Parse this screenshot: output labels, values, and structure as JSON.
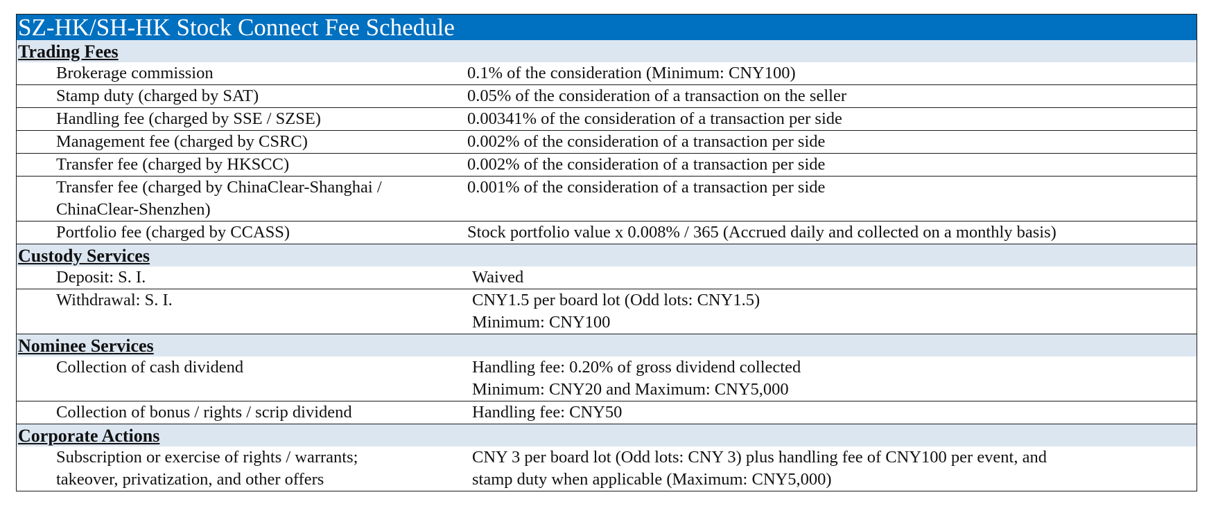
{
  "title": "SZ-HK/SH-HK Stock Connect Fee Schedule",
  "sections": [
    {
      "heading": "Trading Fees",
      "rows": [
        {
          "label": [
            "Brokerage commission"
          ],
          "value": [
            "0.1% of the consideration (Minimum: CNY100)"
          ]
        },
        {
          "label": [
            "Stamp duty (charged by SAT)"
          ],
          "value": [
            "0.05% of the consideration of a transaction on the seller"
          ]
        },
        {
          "label": [
            "Handling fee (charged by SSE / SZSE)"
          ],
          "value": [
            "0.00341% of the consideration of a transaction per side"
          ]
        },
        {
          "label": [
            "Management fee (charged by CSRC)"
          ],
          "value": [
            "0.002% of the consideration of a transaction per side"
          ]
        },
        {
          "label": [
            "Transfer fee (charged by HKSCC)"
          ],
          "value": [
            "0.002% of the consideration of a transaction per side"
          ]
        },
        {
          "label": [
            "Transfer fee (charged by ChinaClear-Shanghai /",
            "ChinaClear-Shenzhen)"
          ],
          "value": [
            "0.001% of the consideration of a transaction per side"
          ]
        },
        {
          "label": [
            "Portfolio fee (charged by CCASS)"
          ],
          "value": [
            "Stock portfolio value x 0.008% / 365 (Accrued daily and  collected on a monthly basis)"
          ]
        }
      ]
    },
    {
      "heading": "Custody Services",
      "rows": [
        {
          "label": [
            "Deposit: S. I."
          ],
          "value": [
            "Waived"
          ]
        },
        {
          "label": [
            "Withdrawal: S. I."
          ],
          "value": [
            "CNY1.5 per board lot (Odd lots: CNY1.5)",
            "Minimum: CNY100"
          ]
        }
      ]
    },
    {
      "heading": "Nominee Services",
      "rows": [
        {
          "label": [
            "Collection of cash dividend"
          ],
          "value": [
            "Handling fee: 0.20% of gross dividend collected",
            "Minimum: CNY20 and Maximum: CNY5,000"
          ]
        },
        {
          "label": [
            "Collection of bonus / rights / scrip dividend"
          ],
          "value": [
            "Handling fee: CNY50"
          ]
        }
      ]
    },
    {
      "heading": "Corporate Actions",
      "rows": [
        {
          "label": [
            "Subscription or exercise of rights / warrants;",
            "takeover, privatization, and other offers"
          ],
          "value": [
            "CNY 3 per board lot (Odd lots: CNY 3) plus handling fee of CNY100 per event, and",
            "stamp duty when applicable (Maximum: CNY5,000)"
          ]
        }
      ]
    }
  ]
}
